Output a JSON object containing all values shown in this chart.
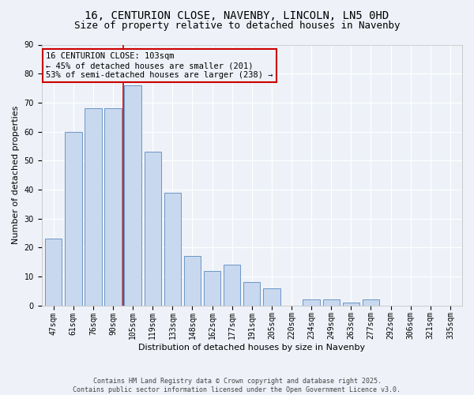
{
  "title1": "16, CENTURION CLOSE, NAVENBY, LINCOLN, LN5 0HD",
  "title2": "Size of property relative to detached houses in Navenby",
  "xlabel": "Distribution of detached houses by size in Navenby",
  "ylabel": "Number of detached properties",
  "categories": [
    "47sqm",
    "61sqm",
    "76sqm",
    "90sqm",
    "105sqm",
    "119sqm",
    "133sqm",
    "148sqm",
    "162sqm",
    "177sqm",
    "191sqm",
    "205sqm",
    "220sqm",
    "234sqm",
    "249sqm",
    "263sqm",
    "277sqm",
    "292sqm",
    "306sqm",
    "321sqm",
    "335sqm"
  ],
  "values": [
    23,
    60,
    68,
    68,
    76,
    53,
    39,
    17,
    12,
    14,
    8,
    6,
    0,
    2,
    2,
    1,
    2,
    0,
    0,
    0,
    0
  ],
  "bar_color": "#c8d8ee",
  "bar_edge_color": "#5a8abf",
  "vline_x": 3.5,
  "vline_color": "#cc0000",
  "annotation_text": "16 CENTURION CLOSE: 103sqm\n← 45% of detached houses are smaller (201)\n53% of semi-detached houses are larger (238) →",
  "annotation_box_color": "#cc0000",
  "background_color": "#eef2f8",
  "grid_color": "#ffffff",
  "ylim": [
    0,
    90
  ],
  "yticks": [
    0,
    10,
    20,
    30,
    40,
    50,
    60,
    70,
    80,
    90
  ],
  "footer": "Contains HM Land Registry data © Crown copyright and database right 2025.\nContains public sector information licensed under the Open Government Licence v3.0.",
  "title_fontsize": 10,
  "subtitle_fontsize": 9,
  "axis_fontsize": 8,
  "tick_fontsize": 7,
  "annotation_fontsize": 7.5,
  "footer_fontsize": 6
}
